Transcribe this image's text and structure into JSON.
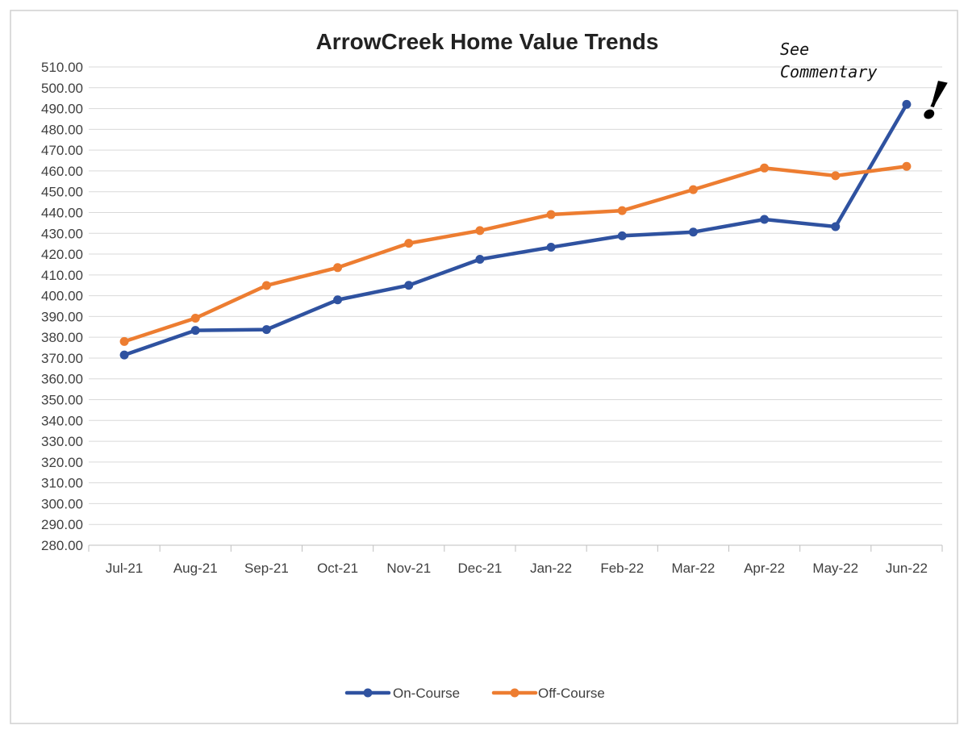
{
  "chart_data": {
    "type": "line",
    "title": "ArrowCreek Home Value Trends",
    "xlabel": "",
    "ylabel": "",
    "categories": [
      "Jul-21",
      "Aug-21",
      "Sep-21",
      "Oct-21",
      "Nov-21",
      "Dec-21",
      "Jan-22",
      "Feb-22",
      "Mar-22",
      "Apr-22",
      "May-22",
      "Jun-22"
    ],
    "ylim": [
      280,
      510
    ],
    "yticks": [
      "280.00",
      "290.00",
      "300.00",
      "310.00",
      "320.00",
      "330.00",
      "340.00",
      "350.00",
      "360.00",
      "370.00",
      "380.00",
      "390.00",
      "400.00",
      "410.00",
      "420.00",
      "430.00",
      "440.00",
      "450.00",
      "460.00",
      "470.00",
      "480.00",
      "490.00",
      "500.00",
      "510.00"
    ],
    "grid": true,
    "legend_position": "bottom",
    "series": [
      {
        "name": "On-Course",
        "color": "#2F52A0",
        "values": [
          371.5,
          383.3,
          383.7,
          398.0,
          405.0,
          417.5,
          423.3,
          428.8,
          430.6,
          436.7,
          433.2,
          492.0
        ]
      },
      {
        "name": "Off-Course",
        "color": "#ED7D31",
        "values": [
          378.0,
          389.2,
          404.9,
          413.5,
          425.2,
          431.3,
          439.0,
          440.9,
          451.0,
          461.4,
          457.7,
          462.2
        ]
      }
    ],
    "annotations": {
      "note_line1": "See",
      "note_line2": "Commentary",
      "exclamation": "!"
    }
  }
}
